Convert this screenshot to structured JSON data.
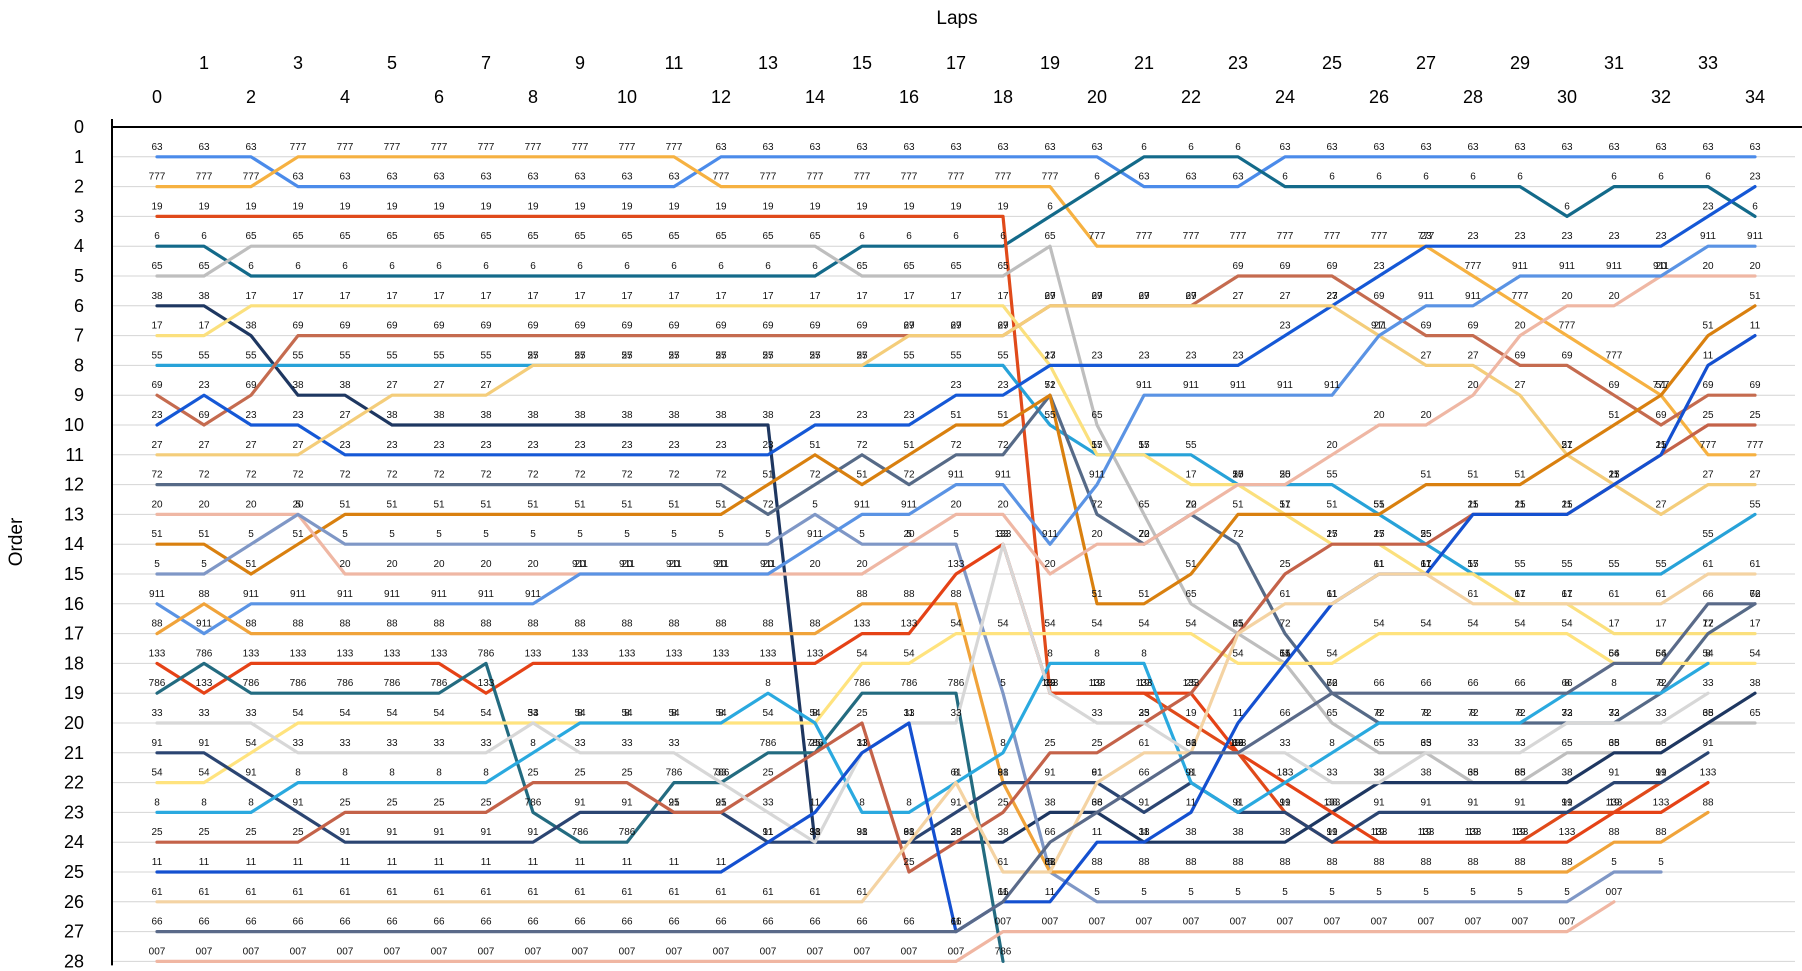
{
  "chart_data": {
    "type": "line",
    "title": "",
    "xlabel": "Laps",
    "ylabel": "Order",
    "x": [
      0,
      1,
      2,
      3,
      4,
      5,
      6,
      7,
      8,
      9,
      10,
      11,
      12,
      13,
      14,
      15,
      16,
      17,
      18,
      19,
      20,
      21,
      22,
      23,
      24,
      25,
      26,
      27,
      28,
      29,
      30,
      31,
      32,
      33,
      34
    ],
    "x_ticks_lower": [
      0,
      2,
      4,
      6,
      8,
      10,
      12,
      14,
      16,
      18,
      20,
      22,
      24,
      26,
      28,
      30,
      32,
      34
    ],
    "x_ticks_upper": [
      1,
      3,
      5,
      7,
      9,
      11,
      13,
      15,
      17,
      19,
      21,
      23,
      25,
      27,
      29,
      31,
      33
    ],
    "ylim": [
      0,
      28
    ],
    "y_ticks": [
      0,
      1,
      2,
      3,
      4,
      5,
      6,
      7,
      8,
      9,
      10,
      11,
      12,
      13,
      14,
      15,
      16,
      17,
      18,
      19,
      20,
      21,
      22,
      23,
      24,
      25,
      26,
      27,
      28
    ],
    "grid": true,
    "series": [
      {
        "label": "63",
        "color": "#4b8bea",
        "order": [
          1,
          1,
          1,
          2,
          2,
          2,
          2,
          2,
          2,
          2,
          2,
          2,
          1,
          1,
          1,
          1,
          1,
          1,
          1,
          1,
          1,
          2,
          2,
          2,
          1,
          1,
          1,
          1,
          1,
          1,
          1,
          1,
          1,
          1,
          1
        ]
      },
      {
        "label": "777",
        "color": "#f6b141",
        "order": [
          2,
          2,
          2,
          1,
          1,
          1,
          1,
          1,
          1,
          1,
          1,
          1,
          2,
          2,
          2,
          2,
          2,
          2,
          2,
          2,
          4,
          4,
          4,
          4,
          4,
          4,
          4,
          4,
          5,
          6,
          7,
          8,
          9,
          11,
          11
        ]
      },
      {
        "label": "6",
        "color": "#136a8a",
        "order": [
          4,
          4,
          5,
          5,
          5,
          5,
          5,
          5,
          5,
          5,
          5,
          5,
          5,
          5,
          5,
          4,
          4,
          4,
          4,
          3,
          2,
          1,
          1,
          1,
          2,
          2,
          2,
          2,
          2,
          2,
          3,
          2,
          2,
          2,
          3
        ]
      },
      {
        "label": "19",
        "color": "#e04a1a",
        "order": [
          3,
          3,
          3,
          3,
          3,
          3,
          3,
          3,
          3,
          3,
          3,
          3,
          3,
          3,
          3,
          3,
          3,
          3,
          3,
          19,
          19,
          19,
          20,
          21,
          23,
          24,
          24,
          24,
          24,
          24,
          23,
          23,
          22,
          null,
          null
        ]
      },
      {
        "label": "65",
        "color": "#bebebe",
        "order": [
          5,
          5,
          4,
          4,
          4,
          4,
          4,
          4,
          4,
          4,
          4,
          4,
          4,
          4,
          4,
          5,
          5,
          5,
          5,
          4,
          10,
          13,
          16,
          17,
          18,
          20,
          21,
          21,
          22,
          22,
          21,
          21,
          21,
          20,
          20
        ]
      },
      {
        "label": "38",
        "color": "#1e3761",
        "order": [
          6,
          6,
          7,
          9,
          9,
          10,
          10,
          10,
          10,
          10,
          10,
          10,
          10,
          10,
          24,
          24,
          24,
          24,
          24,
          23,
          23,
          24,
          24,
          24,
          24,
          23,
          22,
          22,
          22,
          22,
          22,
          21,
          21,
          20,
          19
        ]
      },
      {
        "label": "55",
        "color": "#27a2d8",
        "order": [
          8,
          8,
          8,
          8,
          8,
          8,
          8,
          8,
          8,
          8,
          8,
          8,
          8,
          8,
          8,
          8,
          8,
          8,
          8,
          10,
          11,
          11,
          11,
          12,
          12,
          12,
          13,
          14,
          15,
          15,
          15,
          15,
          15,
          14,
          13
        ]
      },
      {
        "label": "17",
        "color": "#fbe07d",
        "order": [
          7,
          7,
          6,
          6,
          6,
          6,
          6,
          6,
          6,
          6,
          6,
          6,
          6,
          6,
          6,
          6,
          6,
          6,
          6,
          8,
          11,
          11,
          12,
          12,
          13,
          14,
          14,
          15,
          15,
          16,
          16,
          17,
          17,
          17,
          17
        ]
      },
      {
        "label": "69",
        "color": "#c56b4f",
        "order": [
          9,
          10,
          9,
          7,
          7,
          7,
          7,
          7,
          7,
          7,
          7,
          7,
          7,
          7,
          7,
          7,
          7,
          7,
          7,
          6,
          6,
          6,
          6,
          5,
          5,
          5,
          6,
          7,
          7,
          8,
          8,
          9,
          10,
          9,
          9
        ]
      },
      {
        "label": "23",
        "color": "#1558d6",
        "order": [
          10,
          9,
          10,
          10,
          11,
          11,
          11,
          11,
          11,
          11,
          11,
          11,
          11,
          11,
          10,
          10,
          10,
          9,
          9,
          8,
          8,
          8,
          8,
          8,
          7,
          6,
          5,
          4,
          4,
          4,
          4,
          4,
          4,
          3,
          2
        ]
      },
      {
        "label": "27",
        "color": "#f4cd7a",
        "order": [
          11,
          11,
          11,
          11,
          10,
          9,
          9,
          9,
          8,
          8,
          8,
          8,
          8,
          8,
          8,
          8,
          7,
          7,
          7,
          6,
          6,
          6,
          6,
          6,
          6,
          6,
          7,
          8,
          8,
          9,
          11,
          12,
          13,
          12,
          12
        ]
      },
      {
        "label": "72",
        "color": "#566a87",
        "order": [
          12,
          12,
          12,
          12,
          12,
          12,
          12,
          12,
          12,
          12,
          12,
          12,
          12,
          13,
          12,
          11,
          12,
          11,
          11,
          9,
          13,
          14,
          13,
          14,
          17,
          19,
          20,
          20,
          20,
          20,
          20,
          20,
          19,
          17,
          16
        ]
      },
      {
        "label": "51",
        "color": "#d9800f",
        "order": [
          14,
          14,
          15,
          14,
          13,
          13,
          13,
          13,
          13,
          13,
          13,
          13,
          13,
          12,
          11,
          12,
          11,
          10,
          10,
          9,
          16,
          16,
          15,
          13,
          13,
          13,
          13,
          12,
          12,
          12,
          11,
          10,
          9,
          7,
          6
        ]
      },
      {
        "label": "20",
        "color": "#efb7a4",
        "order": [
          13,
          13,
          13,
          13,
          15,
          15,
          15,
          15,
          15,
          15,
          15,
          15,
          15,
          15,
          15,
          15,
          14,
          13,
          13,
          15,
          14,
          14,
          13,
          12,
          12,
          11,
          10,
          10,
          9,
          7,
          6,
          6,
          5,
          5,
          5
        ]
      },
      {
        "label": "5",
        "color": "#7f97c6",
        "order": [
          15,
          15,
          14,
          13,
          14,
          14,
          14,
          14,
          14,
          14,
          14,
          14,
          14,
          14,
          13,
          14,
          14,
          14,
          19,
          25,
          26,
          26,
          26,
          26,
          26,
          26,
          26,
          26,
          26,
          26,
          26,
          25,
          25,
          null,
          null
        ]
      },
      {
        "label": "911",
        "color": "#5a93e4",
        "order": [
          16,
          17,
          16,
          16,
          16,
          16,
          16,
          16,
          16,
          15,
          15,
          15,
          15,
          15,
          14,
          13,
          13,
          12,
          12,
          14,
          12,
          9,
          9,
          9,
          9,
          9,
          7,
          6,
          6,
          5,
          5,
          5,
          5,
          4,
          4
        ]
      },
      {
        "label": "88",
        "color": "#f0a33a",
        "order": [
          17,
          16,
          17,
          17,
          17,
          17,
          17,
          17,
          17,
          17,
          17,
          17,
          17,
          17,
          17,
          16,
          16,
          16,
          22,
          25,
          25,
          25,
          25,
          25,
          25,
          25,
          25,
          25,
          25,
          25,
          25,
          24,
          24,
          23,
          null
        ]
      },
      {
        "label": "133",
        "color": "#e54216",
        "order": [
          18,
          19,
          18,
          18,
          18,
          18,
          18,
          19,
          18,
          18,
          18,
          18,
          18,
          18,
          18,
          17,
          17,
          15,
          14,
          19,
          19,
          19,
          19,
          21,
          22,
          23,
          24,
          24,
          24,
          24,
          24,
          23,
          23,
          22,
          null
        ]
      },
      {
        "label": "786",
        "color": "#236b80",
        "order": [
          19,
          18,
          19,
          19,
          19,
          19,
          19,
          18,
          23,
          24,
          24,
          22,
          22,
          21,
          21,
          19,
          19,
          19,
          28,
          null,
          null,
          null,
          null,
          null,
          null,
          null,
          null,
          null,
          null,
          null,
          null,
          null,
          null,
          null,
          null
        ]
      },
      {
        "label": "54",
        "color": "#ffe37e",
        "order": [
          22,
          22,
          21,
          20,
          20,
          20,
          20,
          20,
          20,
          20,
          20,
          20,
          20,
          20,
          20,
          18,
          18,
          17,
          17,
          17,
          17,
          17,
          17,
          18,
          18,
          18,
          17,
          17,
          17,
          17,
          17,
          18,
          18,
          18,
          18
        ]
      },
      {
        "label": "91",
        "color": "#2b4572",
        "order": [
          21,
          21,
          22,
          23,
          24,
          24,
          24,
          24,
          24,
          23,
          23,
          23,
          23,
          24,
          24,
          24,
          24,
          23,
          22,
          22,
          22,
          23,
          22,
          23,
          23,
          24,
          23,
          23,
          23,
          23,
          23,
          22,
          22,
          21,
          null
        ]
      },
      {
        "label": "8",
        "color": "#2aa9df",
        "order": [
          23,
          23,
          23,
          22,
          22,
          22,
          22,
          22,
          21,
          20,
          20,
          20,
          20,
          19,
          20,
          23,
          23,
          22,
          21,
          18,
          18,
          18,
          22,
          23,
          22,
          21,
          20,
          20,
          20,
          20,
          19,
          19,
          19,
          18,
          null
        ]
      },
      {
        "label": "25",
        "color": "#c46249",
        "order": [
          24,
          24,
          24,
          24,
          23,
          23,
          23,
          23,
          22,
          22,
          22,
          23,
          23,
          22,
          21,
          20,
          25,
          24,
          23,
          21,
          21,
          20,
          19,
          17,
          15,
          14,
          14,
          14,
          13,
          13,
          13,
          12,
          11,
          10,
          10
        ]
      },
      {
        "label": "33",
        "color": "#d7d7d7",
        "order": [
          20,
          20,
          20,
          21,
          21,
          21,
          21,
          21,
          20,
          21,
          21,
          21,
          22,
          23,
          24,
          21,
          20,
          20,
          14,
          19,
          20,
          20,
          21,
          21,
          21,
          22,
          22,
          21,
          21,
          21,
          20,
          20,
          20,
          19,
          null
        ]
      },
      {
        "label": "11",
        "color": "#1450d0",
        "order": [
          25,
          25,
          25,
          25,
          25,
          25,
          25,
          25,
          25,
          25,
          25,
          25,
          25,
          24,
          23,
          21,
          20,
          27,
          26,
          26,
          24,
          24,
          23,
          20,
          18,
          16,
          15,
          15,
          13,
          13,
          13,
          12,
          11,
          8,
          7
        ]
      },
      {
        "label": "61",
        "color": "#f4d3a3",
        "order": [
          26,
          26,
          26,
          26,
          26,
          26,
          26,
          26,
          26,
          26,
          26,
          26,
          26,
          26,
          26,
          26,
          24,
          22,
          25,
          25,
          22,
          21,
          21,
          17,
          16,
          16,
          15,
          15,
          16,
          16,
          16,
          16,
          16,
          15,
          15
        ]
      },
      {
        "label": "66",
        "color": "#5a6a89",
        "order": [
          27,
          27,
          27,
          27,
          27,
          27,
          27,
          27,
          27,
          27,
          27,
          27,
          27,
          27,
          27,
          27,
          27,
          27,
          26,
          24,
          23,
          22,
          21,
          21,
          20,
          19,
          19,
          19,
          19,
          19,
          19,
          18,
          18,
          16,
          16
        ]
      },
      {
        "label": "007",
        "color": "#f0b6a2",
        "order": [
          28,
          28,
          28,
          28,
          28,
          28,
          28,
          28,
          28,
          28,
          28,
          28,
          28,
          28,
          28,
          28,
          28,
          28,
          27,
          27,
          27,
          27,
          27,
          27,
          27,
          27,
          27,
          27,
          27,
          27,
          27,
          26,
          null,
          null,
          null
        ]
      }
    ]
  }
}
